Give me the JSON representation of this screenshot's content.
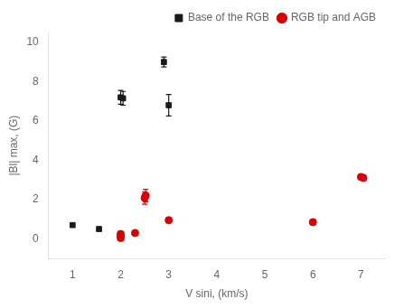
{
  "chart_data": {
    "type": "scatter",
    "xlabel": "V sini, (km/s)",
    "ylabel": "|Bl| max, (G)",
    "xlim": [
      0.5,
      7.5
    ],
    "ylim": [
      -1.0,
      10.5
    ],
    "xticks": [
      1,
      2,
      3,
      4,
      5,
      6,
      7
    ],
    "yticks": [
      0,
      2,
      4,
      6,
      8,
      10
    ],
    "grid": false,
    "legend": "upper right",
    "series": [
      {
        "name": "Base of the RGB",
        "color": "#1a1a1a",
        "marker": "square",
        "x": [
          1.0,
          1.55,
          2.0,
          2.05,
          2.9,
          3.0
        ],
        "values": [
          0.7,
          0.5,
          7.2,
          7.15,
          9.0,
          6.8
        ],
        "yerr": [
          0.0,
          0.0,
          0.35,
          0.35,
          0.25,
          0.55
        ]
      },
      {
        "name": "RGB tip and AGB",
        "color": "#dd0000",
        "marker": "circle",
        "x": [
          2.0,
          2.0,
          2.0,
          2.3,
          2.5,
          2.52,
          3.0,
          6.0,
          7.0,
          7.05
        ],
        "values": [
          0.25,
          0.12,
          0.04,
          0.3,
          2.08,
          2.2,
          0.95,
          0.85,
          3.15,
          3.1
        ],
        "yerr": [
          0.12,
          0.12,
          0.12,
          0.0,
          0.32,
          0.32,
          0.12,
          0.12,
          0.12,
          0.12
        ]
      }
    ]
  }
}
